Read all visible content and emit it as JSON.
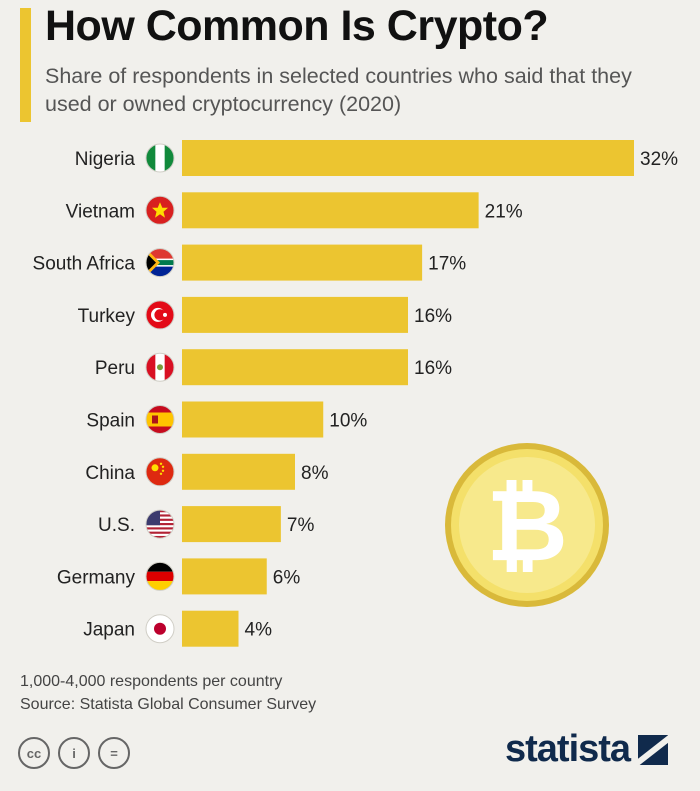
{
  "chart_data": {
    "type": "bar",
    "orientation": "horizontal",
    "title": "How Common Is Crypto?",
    "subtitle": "Share of respondents in selected countries who said that they used or owned cryptocurrency (2020)",
    "categories": [
      "Nigeria",
      "Vietnam",
      "South Africa",
      "Turkey",
      "Peru",
      "Spain",
      "China",
      "U.S.",
      "Germany",
      "Japan"
    ],
    "values": [
      32,
      21,
      17,
      16,
      16,
      10,
      8,
      7,
      6,
      4
    ],
    "value_labels": [
      "32%",
      "21%",
      "17%",
      "16%",
      "16%",
      "10%",
      "8%",
      "7%",
      "6%",
      "4%"
    ],
    "flags": [
      "nigeria-flag",
      "vietnam-flag",
      "south-africa-flag",
      "turkey-flag",
      "peru-flag",
      "spain-flag",
      "china-flag",
      "us-flag",
      "germany-flag",
      "japan-flag"
    ],
    "xlabel": "",
    "ylabel": "",
    "xlim": [
      0,
      32
    ],
    "grid": false,
    "bar_color": "#ecc530"
  },
  "notes": {
    "respondents": "1,000-4,000 respondents per country",
    "source": "Source: Statista Global Consumer Survey"
  },
  "license_icons": [
    "cc-icon",
    "attribution-icon",
    "no-derivatives-icon"
  ],
  "license_glyphs": [
    "cc",
    "i",
    "="
  ],
  "brand": {
    "name": "statista"
  },
  "decoration": {
    "coin_symbol": "₿",
    "coin_icon": "bitcoin-coin-icon"
  },
  "colors": {
    "bar": "#ecc530",
    "accent": "#ecc530",
    "brand": "#102a4c",
    "background": "#f1f0ec"
  }
}
